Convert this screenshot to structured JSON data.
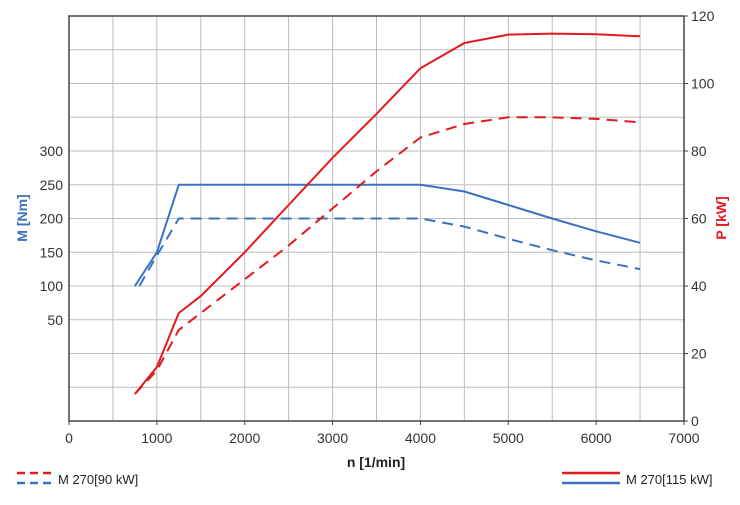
{
  "chart_data": {
    "type": "line",
    "xlabel": "n [1/min]",
    "ylabel_left": "M [Nm]",
    "ylabel_right": "P [kW]",
    "xlim": [
      0,
      7000
    ],
    "ylim_left": [
      -100,
      500
    ],
    "ylim_right": [
      0,
      120
    ],
    "x_ticks": [
      "0",
      "1000",
      "2000",
      "3000",
      "4000",
      "5000",
      "6000",
      "7000"
    ],
    "x_tick_values": [
      0,
      1000,
      2000,
      3000,
      4000,
      5000,
      6000,
      7000
    ],
    "y_left_ticks": [
      "50",
      "100",
      "150",
      "200",
      "250",
      "300"
    ],
    "y_left_tick_values": [
      50,
      100,
      150,
      200,
      250,
      300
    ],
    "y_right_ticks": [
      "0",
      "20",
      "40",
      "60",
      "80",
      "100",
      "120"
    ],
    "y_right_tick_values": [
      0,
      20,
      40,
      60,
      80,
      100,
      120
    ],
    "grid": true,
    "colors": {
      "torque": "#3a72c0",
      "power": "#e3191c",
      "left_label": "#3a72c0",
      "right_label": "#e3191c"
    },
    "series": [
      {
        "key": "torque115",
        "axis": "left",
        "quantity": "torque",
        "style": "solid",
        "x": [
          750,
          1000,
          1250,
          4000,
          4500,
          5000,
          5500,
          6000,
          6500
        ],
        "y": [
          100,
          150,
          250,
          250,
          240,
          220,
          200,
          181,
          164
        ]
      },
      {
        "key": "torque90",
        "axis": "left",
        "quantity": "torque",
        "style": "dashed",
        "x": [
          800,
          1000,
          1250,
          4000,
          4500,
          5000,
          5500,
          6000,
          6500
        ],
        "y": [
          100,
          145,
          200,
          200,
          188,
          170,
          153,
          138,
          125
        ]
      },
      {
        "key": "power115",
        "axis": "right",
        "quantity": "power",
        "style": "solid",
        "x": [
          750,
          1000,
          1250,
          1500,
          2000,
          2500,
          3000,
          3500,
          4000,
          4500,
          5000,
          5500,
          6000,
          6500
        ],
        "y": [
          8,
          16,
          32,
          37,
          50,
          64,
          78,
          91,
          104.5,
          112,
          114.5,
          114.8,
          114.6,
          114
        ]
      },
      {
        "key": "power90",
        "axis": "right",
        "quantity": "power",
        "style": "dashed",
        "x": [
          750,
          1000,
          1250,
          1500,
          2000,
          2500,
          3000,
          3500,
          4000,
          4500,
          5000,
          5500,
          6000,
          6500
        ],
        "y": [
          8,
          15,
          27,
          32,
          42,
          52,
          63,
          74,
          84,
          88,
          90,
          90,
          89.5,
          88.5
        ]
      }
    ],
    "legend": {
      "placement": "bottom",
      "items": [
        {
          "label": "M 270[90 kW]",
          "style": "dashed"
        },
        {
          "label": "M 270[115 kW]",
          "style": "solid"
        }
      ]
    }
  }
}
